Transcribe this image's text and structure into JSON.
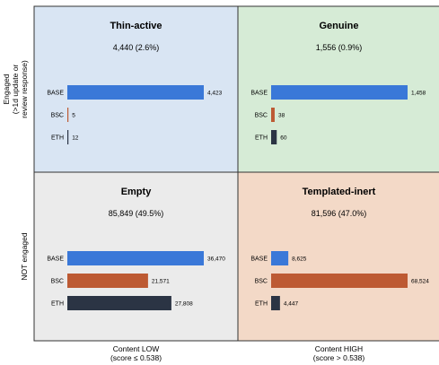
{
  "chart_data": {
    "type": "bar",
    "colors": {
      "BASE": "#3a78d8",
      "BSC": "#bd5a33",
      "ETH": "#2b3444"
    },
    "quadrants": [
      {
        "id": "thin_active",
        "title": "Thin-active",
        "subtitle": "4,440  (2.6%)",
        "bg": "#d9e5f3",
        "row": "top",
        "col": "left",
        "scale_max": 4423,
        "bars": [
          {
            "chain": "BASE",
            "value": 4423,
            "label": "4,423"
          },
          {
            "chain": "BSC",
            "value": 5,
            "label": "5"
          },
          {
            "chain": "ETH",
            "value": 12,
            "label": "12"
          }
        ]
      },
      {
        "id": "genuine",
        "title": "Genuine",
        "subtitle": "1,556  (0.9%)",
        "bg": "#d6ebd6",
        "row": "top",
        "col": "right",
        "scale_max": 1458,
        "bars": [
          {
            "chain": "BASE",
            "value": 1458,
            "label": "1,458"
          },
          {
            "chain": "BSC",
            "value": 38,
            "label": "38"
          },
          {
            "chain": "ETH",
            "value": 60,
            "label": "60"
          }
        ]
      },
      {
        "id": "empty",
        "title": "Empty",
        "subtitle": "85,849  (49.5%)",
        "bg": "#ebebeb",
        "row": "bottom",
        "col": "left",
        "scale_max": 36470,
        "bars": [
          {
            "chain": "BASE",
            "value": 36470,
            "label": "36,470"
          },
          {
            "chain": "BSC",
            "value": 21571,
            "label": "21,571"
          },
          {
            "chain": "ETH",
            "value": 27808,
            "label": "27,808"
          }
        ]
      },
      {
        "id": "templated_inert",
        "title": "Templated-inert",
        "subtitle": "81,596  (47.0%)",
        "bg": "#f3d9c7",
        "row": "bottom",
        "col": "right",
        "scale_max": 68524,
        "bars": [
          {
            "chain": "BASE",
            "value": 8625,
            "label": "8,625"
          },
          {
            "chain": "BSC",
            "value": 68524,
            "label": "68,524"
          },
          {
            "chain": "ETH",
            "value": 4447,
            "label": "4,447"
          }
        ]
      }
    ],
    "row_labels": {
      "top": [
        "Engaged",
        "(>1d update or",
        "review response)"
      ],
      "bottom": [
        "NOT engaged"
      ]
    },
    "col_labels": {
      "left": [
        "Content LOW",
        "(score  ≤  0.538)"
      ],
      "right": [
        "Content HIGH",
        "(score  >  0.538)"
      ]
    }
  }
}
